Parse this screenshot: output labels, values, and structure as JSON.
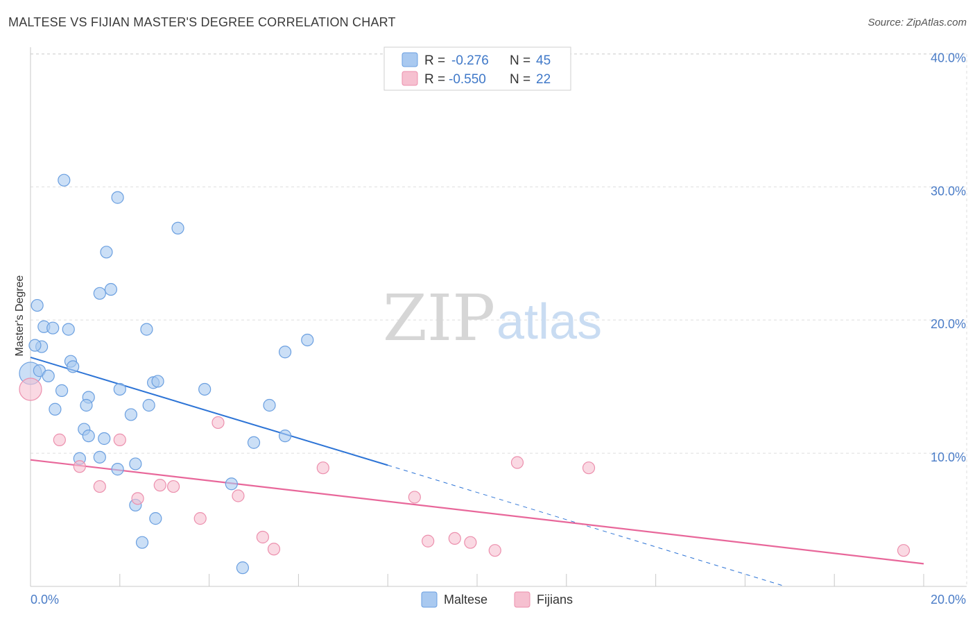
{
  "header": {
    "title": "MALTESE VS FIJIAN MASTER'S DEGREE CORRELATION CHART",
    "source": "Source: ZipAtlas.com"
  },
  "watermark": {
    "zip": "ZIP",
    "atlas": "atlas"
  },
  "colors": {
    "maltese_fill": "#a9c9f0",
    "maltese_stroke": "#6a9fe0",
    "maltese_line": "#2d74d6",
    "fijian_fill": "#f6c0d0",
    "fijian_stroke": "#ec8fad",
    "fijian_line": "#e8679a",
    "tick_label": "#4a7cc7",
    "grid": "#dddddd"
  },
  "legend": {
    "rows": [
      {
        "r_label": "R =",
        "r_value": "-0.276",
        "n_label": "N =",
        "n_value": "45"
      },
      {
        "r_label": "R =",
        "r_value": "-0.550",
        "n_label": "N =",
        "n_value": "22"
      }
    ]
  },
  "chart_data": {
    "type": "scatter",
    "title": "MALTESE VS FIJIAN MASTER'S DEGREE CORRELATION CHART",
    "xlabel": "",
    "ylabel": "Master's Degree",
    "xlim": [
      0,
      20
    ],
    "ylim": [
      0,
      40.8
    ],
    "x_ticks": [
      "0.0%",
      "20.0%"
    ],
    "y_ticks": [
      {
        "value": 10,
        "label": "10.0%"
      },
      {
        "value": 20,
        "label": "20.0%"
      },
      {
        "value": 30,
        "label": "30.0%"
      },
      {
        "value": 40,
        "label": "40.0%"
      }
    ],
    "grid": true,
    "legend_position": "top-center",
    "series": [
      {
        "name": "Maltese",
        "r": -0.276,
        "n": 45,
        "points": [
          [
            0.0,
            16.0,
            "big"
          ],
          [
            0.15,
            21.1
          ],
          [
            0.25,
            18.0
          ],
          [
            0.1,
            18.1
          ],
          [
            0.3,
            19.5
          ],
          [
            0.5,
            19.4
          ],
          [
            0.75,
            30.5
          ],
          [
            0.85,
            19.3
          ],
          [
            0.2,
            16.2
          ],
          [
            0.4,
            15.8
          ],
          [
            0.7,
            14.7
          ],
          [
            0.55,
            13.3
          ],
          [
            0.9,
            16.9
          ],
          [
            0.95,
            16.5
          ],
          [
            1.3,
            14.2
          ],
          [
            1.25,
            13.6
          ],
          [
            1.2,
            11.8
          ],
          [
            1.3,
            11.3
          ],
          [
            1.65,
            11.1
          ],
          [
            1.55,
            9.7
          ],
          [
            1.1,
            9.6
          ],
          [
            1.7,
            25.1
          ],
          [
            1.55,
            22.0
          ],
          [
            1.8,
            22.3
          ],
          [
            1.95,
            29.2
          ],
          [
            2.0,
            14.8
          ],
          [
            2.25,
            12.9
          ],
          [
            2.6,
            19.3
          ],
          [
            2.65,
            13.6
          ],
          [
            2.75,
            15.3
          ],
          [
            2.85,
            15.4
          ],
          [
            2.35,
            9.2
          ],
          [
            1.95,
            8.8
          ],
          [
            2.35,
            6.1
          ],
          [
            2.8,
            5.1
          ],
          [
            2.5,
            3.3
          ],
          [
            3.3,
            26.9
          ],
          [
            3.9,
            14.8
          ],
          [
            4.5,
            7.7
          ],
          [
            5.0,
            10.8
          ],
          [
            4.75,
            1.4
          ],
          [
            5.35,
            13.6
          ],
          [
            5.7,
            17.6
          ],
          [
            5.7,
            11.3
          ],
          [
            6.2,
            18.5
          ]
        ],
        "trend": {
          "x0": 0,
          "y0": 17.2,
          "x1": 8.0,
          "y1": 9.1,
          "dash_to_x": 16.9,
          "dash_to_y": 0.0
        }
      },
      {
        "name": "Fijians",
        "r": -0.55,
        "n": 22,
        "points": [
          [
            0.0,
            14.8,
            "big"
          ],
          [
            0.65,
            11.0
          ],
          [
            1.1,
            9.0
          ],
          [
            1.55,
            7.5
          ],
          [
            2.0,
            11.0
          ],
          [
            2.4,
            6.6
          ],
          [
            2.9,
            7.6
          ],
          [
            3.2,
            7.5
          ],
          [
            3.8,
            5.1
          ],
          [
            4.2,
            12.3
          ],
          [
            4.65,
            6.8
          ],
          [
            5.2,
            3.7
          ],
          [
            5.45,
            2.8
          ],
          [
            6.55,
            8.9
          ],
          [
            8.6,
            6.7
          ],
          [
            8.9,
            3.4
          ],
          [
            9.5,
            3.6
          ],
          [
            9.85,
            3.3
          ],
          [
            10.4,
            2.7
          ],
          [
            10.9,
            9.3
          ],
          [
            12.5,
            8.9
          ],
          [
            19.55,
            2.7
          ]
        ],
        "trend": {
          "x0": 0,
          "y0": 9.5,
          "x1": 20,
          "y1": 1.7
        }
      }
    ]
  }
}
